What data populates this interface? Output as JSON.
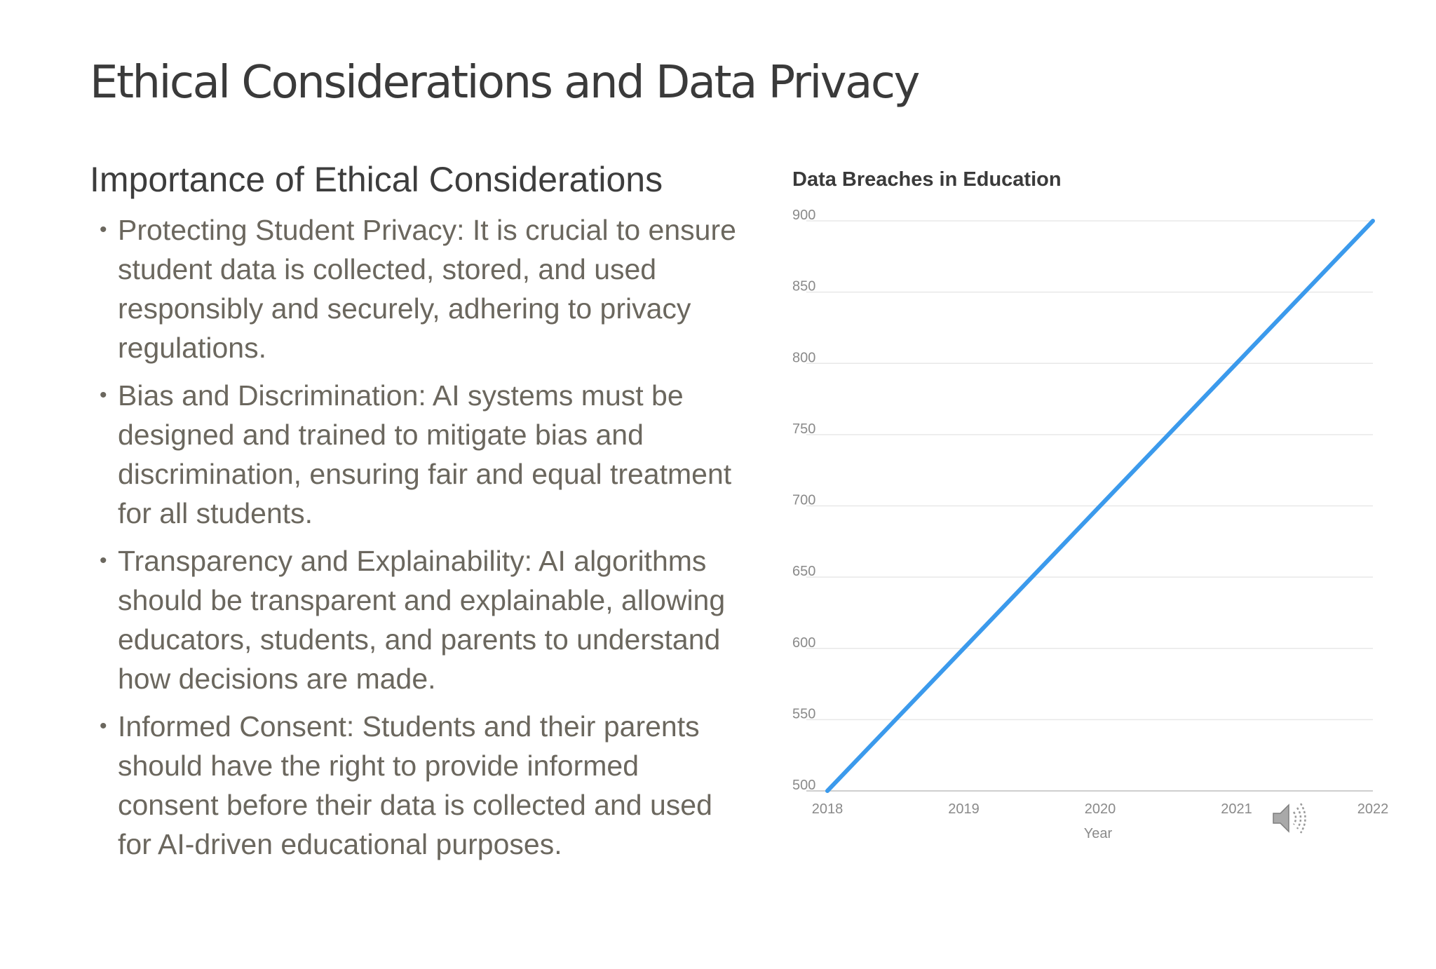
{
  "slide": {
    "title": "Ethical Considerations and Data Privacy"
  },
  "content": {
    "heading": "Importance of Ethical Considerations",
    "bullets": [
      "Protecting Student Privacy: It is crucial to ensure student data is collected, stored, and used responsibly and securely, adhering to privacy regulations.",
      "Bias and Discrimination: AI systems must be designed and trained to mitigate bias and discrimination, ensuring fair and equal treatment for all students.",
      "Transparency and Explainability: AI algorithms should be transparent and explainable, allowing educators, students, and parents to understand how decisions are made.",
      "Informed Consent: Students and their parents should have the right to provide informed consent before their data is collected and used for AI-driven educational purposes."
    ],
    "bullet_glyph": "•"
  },
  "chart_data": {
    "type": "line",
    "title": "Data Breaches in Education",
    "xlabel": "Year",
    "ylabel": "",
    "x": [
      "2018",
      "2019",
      "2020",
      "2021",
      "2022"
    ],
    "series": [
      {
        "values": [
          500,
          600,
          700,
          800,
          900
        ],
        "color": "#3b9aec"
      }
    ],
    "ylim": [
      500,
      900
    ],
    "yticks": [
      500,
      550,
      600,
      650,
      700,
      750,
      800,
      850,
      900
    ],
    "grid": true,
    "legend": "none"
  },
  "audio": {
    "icon": "speaker-icon"
  }
}
